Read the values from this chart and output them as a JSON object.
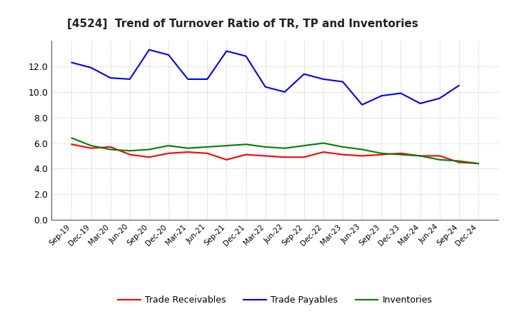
{
  "title": "[4524]  Trend of Turnover Ratio of TR, TP and Inventories",
  "x_labels": [
    "Sep-19",
    "Dec-19",
    "Mar-20",
    "Jun-20",
    "Sep-20",
    "Dec-20",
    "Mar-21",
    "Jun-21",
    "Sep-21",
    "Dec-21",
    "Mar-22",
    "Jun-22",
    "Sep-22",
    "Dec-22",
    "Mar-23",
    "Jun-23",
    "Sep-23",
    "Dec-23",
    "Mar-24",
    "Jun-24",
    "Sep-24",
    "Dec-24"
  ],
  "trade_receivables": [
    5.9,
    5.6,
    5.7,
    5.1,
    4.9,
    5.2,
    5.3,
    5.2,
    4.7,
    5.1,
    5.0,
    4.9,
    4.9,
    5.3,
    5.1,
    5.0,
    5.1,
    5.2,
    5.0,
    5.0,
    4.5,
    4.4
  ],
  "trade_payables": [
    12.3,
    11.9,
    11.1,
    11.0,
    13.3,
    12.9,
    11.0,
    11.0,
    13.2,
    12.8,
    10.4,
    10.0,
    11.4,
    11.0,
    10.8,
    9.0,
    9.7,
    9.9,
    9.1,
    9.5,
    10.5,
    null
  ],
  "inventories": [
    6.4,
    5.8,
    5.5,
    5.4,
    5.5,
    5.8,
    5.6,
    5.7,
    5.8,
    5.9,
    5.7,
    5.6,
    5.8,
    6.0,
    5.7,
    5.5,
    5.2,
    5.1,
    5.0,
    4.7,
    4.6,
    4.4
  ],
  "ylim": [
    0.0,
    14.0
  ],
  "yticks": [
    0.0,
    2.0,
    4.0,
    6.0,
    8.0,
    10.0,
    12.0
  ],
  "color_tr": "#ff0000",
  "color_tp": "#0000ff",
  "color_inv": "#008000",
  "legend_tr": "Trade Receivables",
  "legend_tp": "Trade Payables",
  "legend_inv": "Inventories",
  "background_color": "#ffffff",
  "grid_color": "#aaaaaa",
  "title_fontsize": 11,
  "linewidth": 1.5
}
